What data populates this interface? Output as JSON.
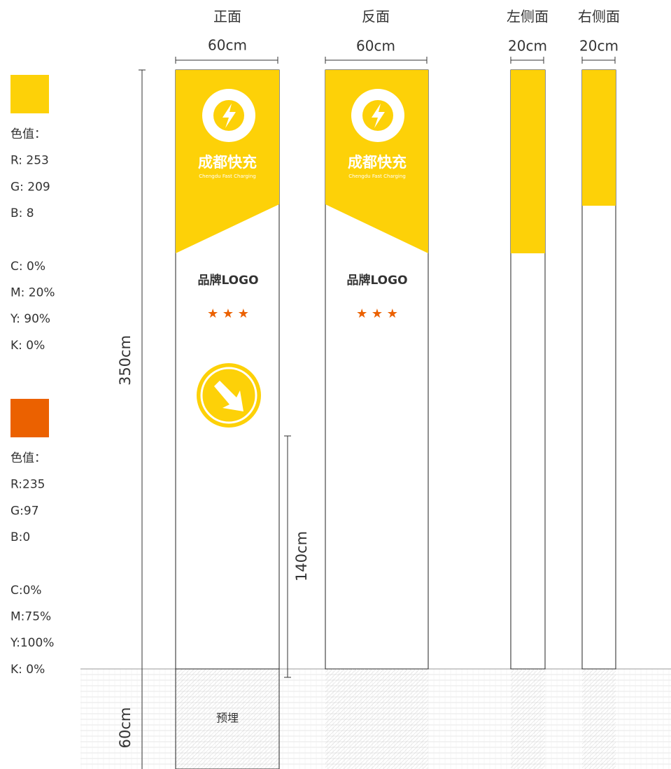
{
  "views": [
    {
      "label": "正面",
      "width": "60cm"
    },
    {
      "label": "反面",
      "width": "60cm"
    },
    {
      "label": "左侧面",
      "width": "20cm"
    },
    {
      "label": "右侧面",
      "width": "20cm"
    }
  ],
  "swatches": [
    {
      "color": "#fdd108",
      "label": "色值：",
      "rgb": [
        "R: 253",
        "G: 209",
        "B: 8"
      ],
      "cmyk": [
        "C: 0%",
        "M: 20%",
        "Y: 90%",
        "K: 0%"
      ]
    },
    {
      "color": "#eb6100",
      "label": "色值：",
      "rgb": [
        "R:235",
        "G:97",
        "B:0"
      ],
      "cmyk": [
        "C:0%",
        "M:75%",
        "Y:100%",
        "K: 0%"
      ]
    }
  ],
  "dimensions": {
    "total_height": "350cm",
    "sign_height": "140cm",
    "buried_depth": "60cm"
  },
  "buried_label": "预埋",
  "brand": {
    "name": "成都快充",
    "english": "Chengdu Fast Charging"
  },
  "logo_placeholder": "品牌LOGO"
}
